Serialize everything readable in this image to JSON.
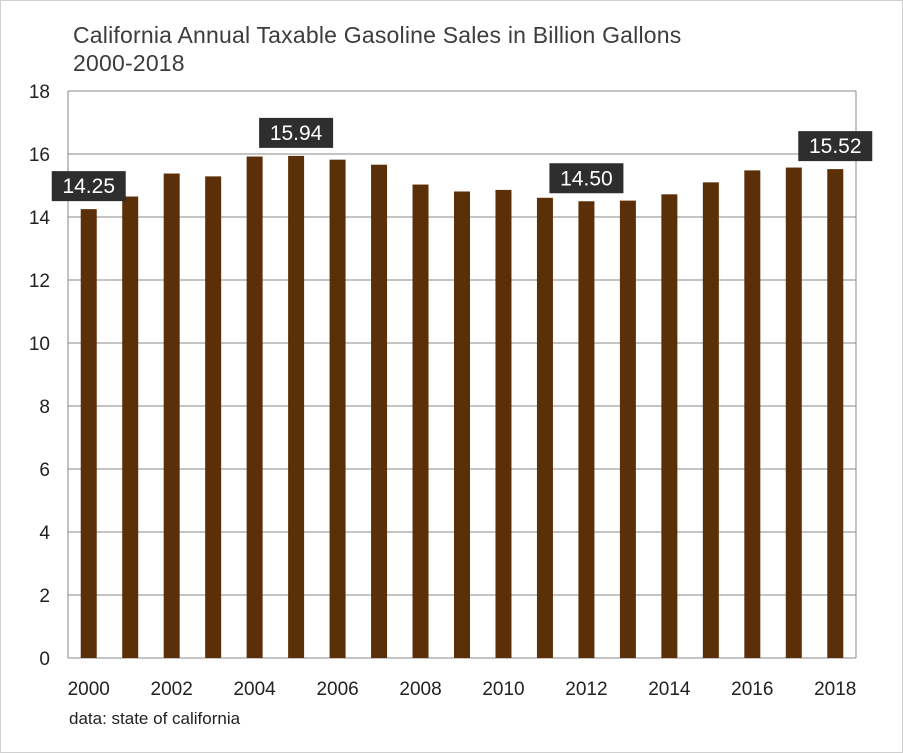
{
  "chart_data": {
    "type": "bar",
    "title": "California Annual Taxable Gasoline Sales in Billion Gallons",
    "subtitle": "2000-2018",
    "source": "data: state of california",
    "categories": [
      "2000",
      "2001",
      "2002",
      "2003",
      "2004",
      "2005",
      "2006",
      "2007",
      "2008",
      "2009",
      "2010",
      "2011",
      "2012",
      "2013",
      "2014",
      "2015",
      "2016",
      "2017",
      "2018"
    ],
    "values": [
      14.25,
      14.65,
      15.38,
      15.29,
      15.92,
      15.94,
      15.82,
      15.66,
      15.03,
      14.81,
      14.86,
      14.61,
      14.5,
      14.52,
      14.72,
      15.1,
      15.48,
      15.57,
      15.52
    ],
    "ylim": [
      0,
      18
    ],
    "y_ticks": [
      0,
      2,
      4,
      6,
      8,
      10,
      12,
      14,
      16,
      18
    ],
    "x_tick_labels": [
      "2000",
      "2002",
      "2004",
      "2006",
      "2008",
      "2010",
      "2012",
      "2014",
      "2016",
      "2018"
    ],
    "annotations": [
      {
        "category": "2000",
        "label": "14.25"
      },
      {
        "category": "2005",
        "label": "15.94"
      },
      {
        "category": "2012",
        "label": "14.50"
      },
      {
        "category": "2018",
        "label": "15.52"
      }
    ],
    "grid": true,
    "xlabel": "",
    "ylabel": ""
  },
  "colors": {
    "bar": "#5b3008",
    "grid": "#8a8a8a",
    "callout": "#2e2e2e"
  }
}
